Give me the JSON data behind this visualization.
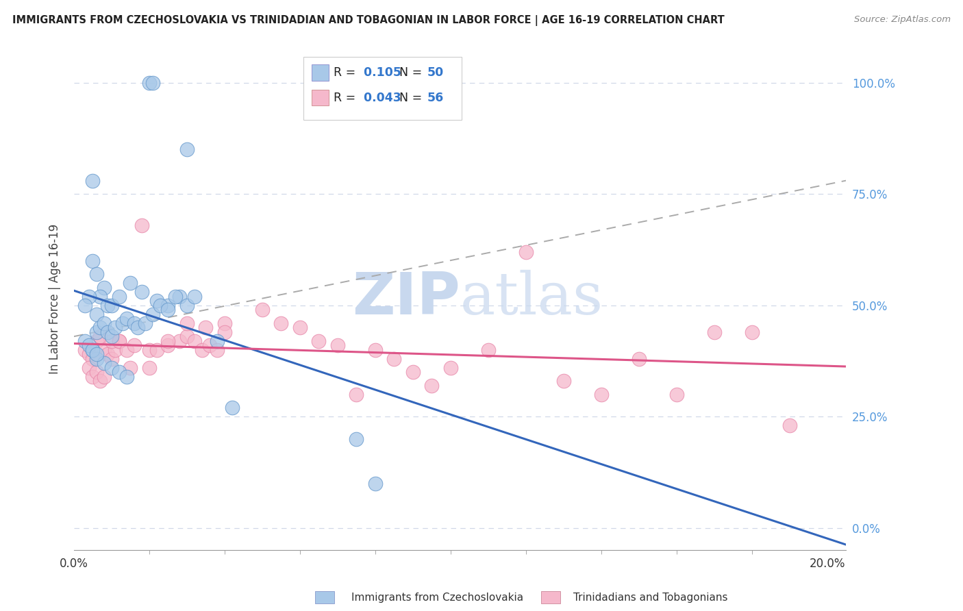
{
  "title": "IMMIGRANTS FROM CZECHOSLOVAKIA VS TRINIDADIAN AND TOBAGONIAN IN LABOR FORCE | AGE 16-19 CORRELATION CHART",
  "source": "Source: ZipAtlas.com",
  "ylabel": "In Labor Force | Age 16-19",
  "legend_label1": "Immigrants from Czechoslovakia",
  "legend_label2": "Trinidadians and Tobagonians",
  "R1": 0.105,
  "N1": 50,
  "R2": 0.043,
  "N2": 56,
  "blue_color": "#a8c8e8",
  "blue_edge_color": "#6699cc",
  "blue_line_color": "#3366bb",
  "pink_color": "#f5b8cb",
  "pink_edge_color": "#e888aa",
  "pink_line_color": "#dd5588",
  "dash_color": "#aaaaaa",
  "background_color": "#ffffff",
  "grid_color": "#d0d8e8",
  "watermark_color": "#c8d8ee",
  "blue_scatter_x": [
    0.02,
    0.021,
    0.03,
    0.005,
    0.005,
    0.006,
    0.008,
    0.007,
    0.009,
    0.004,
    0.003,
    0.006,
    0.01,
    0.012,
    0.015,
    0.018,
    0.022,
    0.025,
    0.028,
    0.03,
    0.032,
    0.006,
    0.007,
    0.008,
    0.009,
    0.01,
    0.011,
    0.013,
    0.014,
    0.016,
    0.017,
    0.019,
    0.021,
    0.023,
    0.025,
    0.027,
    0.005,
    0.006,
    0.008,
    0.01,
    0.012,
    0.014,
    0.038,
    0.042,
    0.075,
    0.08,
    0.003,
    0.004,
    0.005,
    0.006
  ],
  "blue_scatter_y": [
    1.0,
    1.0,
    0.85,
    0.78,
    0.6,
    0.57,
    0.54,
    0.52,
    0.5,
    0.52,
    0.5,
    0.48,
    0.5,
    0.52,
    0.55,
    0.53,
    0.51,
    0.5,
    0.52,
    0.5,
    0.52,
    0.44,
    0.45,
    0.46,
    0.44,
    0.43,
    0.45,
    0.46,
    0.47,
    0.46,
    0.45,
    0.46,
    0.48,
    0.5,
    0.49,
    0.52,
    0.4,
    0.38,
    0.37,
    0.36,
    0.35,
    0.34,
    0.42,
    0.27,
    0.2,
    0.1,
    0.42,
    0.41,
    0.4,
    0.39
  ],
  "pink_scatter_x": [
    0.003,
    0.004,
    0.005,
    0.006,
    0.007,
    0.008,
    0.009,
    0.01,
    0.011,
    0.012,
    0.004,
    0.005,
    0.006,
    0.007,
    0.008,
    0.01,
    0.012,
    0.014,
    0.016,
    0.018,
    0.02,
    0.022,
    0.025,
    0.028,
    0.03,
    0.032,
    0.034,
    0.036,
    0.038,
    0.04,
    0.05,
    0.055,
    0.06,
    0.065,
    0.07,
    0.075,
    0.08,
    0.085,
    0.09,
    0.095,
    0.1,
    0.11,
    0.12,
    0.13,
    0.14,
    0.15,
    0.16,
    0.17,
    0.18,
    0.19,
    0.015,
    0.02,
    0.025,
    0.03,
    0.035,
    0.04
  ],
  "pink_scatter_y": [
    0.4,
    0.39,
    0.38,
    0.42,
    0.43,
    0.4,
    0.39,
    0.38,
    0.4,
    0.42,
    0.36,
    0.34,
    0.35,
    0.33,
    0.34,
    0.42,
    0.42,
    0.4,
    0.41,
    0.68,
    0.4,
    0.4,
    0.41,
    0.42,
    0.43,
    0.42,
    0.4,
    0.41,
    0.4,
    0.46,
    0.49,
    0.46,
    0.45,
    0.42,
    0.41,
    0.3,
    0.4,
    0.38,
    0.35,
    0.32,
    0.36,
    0.4,
    0.62,
    0.33,
    0.3,
    0.38,
    0.3,
    0.44,
    0.44,
    0.23,
    0.36,
    0.36,
    0.42,
    0.46,
    0.45,
    0.44
  ],
  "xlim_min": 0.0,
  "xlim_max": 0.205,
  "ylim_min": -0.05,
  "ylim_max": 1.08,
  "ytick_vals": [
    0.0,
    0.25,
    0.5,
    0.75,
    1.0
  ],
  "ytick_labels": [
    "",
    "",
    "",
    "",
    ""
  ],
  "ytick_labels_right": [
    "0.0%",
    "25.0%",
    "50.0%",
    "75.0%",
    "100.0%"
  ]
}
